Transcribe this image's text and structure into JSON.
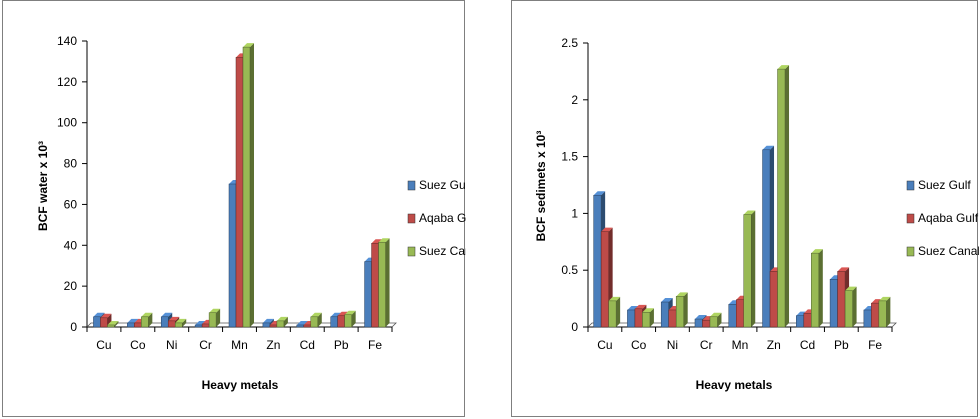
{
  "colors": {
    "Suez Gulf": "#4a7ebb",
    "Aqaba Gulf": "#be4b48",
    "Suez Canal": "#98b954"
  },
  "chart_data": [
    {
      "type": "bar",
      "categories": [
        "Cu",
        "Co",
        "Ni",
        "Cr",
        "Mn",
        "Zn",
        "Cd",
        "Pb",
        "Fe"
      ],
      "series": [
        {
          "name": "Suez Gulf",
          "values": [
            5,
            2,
            5,
            1,
            70,
            2,
            1,
            5,
            32
          ]
        },
        {
          "name": "Aqaba Gulf",
          "values": [
            4.5,
            2,
            3,
            1.5,
            132,
            1,
            1,
            5.5,
            41
          ]
        },
        {
          "name": "Suez Canal",
          "values": [
            1,
            5,
            2,
            7,
            137,
            3,
            5,
            6,
            41.5
          ]
        }
      ],
      "ylabel": "BCF water  x 10³",
      "xlabel": "Heavy metals",
      "ylim": [
        0,
        140
      ],
      "yticks": [
        "0",
        "20",
        "40",
        "60",
        "80",
        "100",
        "120",
        "140"
      ],
      "grid": false,
      "legend": "right"
    },
    {
      "type": "bar",
      "categories": [
        "Cu",
        "Co",
        "Ni",
        "Cr",
        "Mn",
        "Zn",
        "Cd",
        "Pb",
        "Fe"
      ],
      "series": [
        {
          "name": "Suez Gulf",
          "values": [
            1.16,
            0.15,
            0.22,
            0.07,
            0.2,
            1.56,
            0.1,
            0.42,
            0.15
          ]
        },
        {
          "name": "Aqaba Gulf",
          "values": [
            0.84,
            0.16,
            0.15,
            0.06,
            0.24,
            0.49,
            0.12,
            0.49,
            0.21
          ]
        },
        {
          "name": "Suez Canal",
          "values": [
            0.23,
            0.13,
            0.27,
            0.09,
            0.99,
            2.27,
            0.65,
            0.32,
            0.23
          ]
        }
      ],
      "ylabel": "BCF sedimets x 10³",
      "xlabel": "Heavy metals",
      "ylim": [
        0,
        2.5
      ],
      "yticks": [
        "0",
        "0.5",
        "1",
        "1.5",
        "2",
        "2.5"
      ],
      "grid": false,
      "legend": "right"
    }
  ]
}
